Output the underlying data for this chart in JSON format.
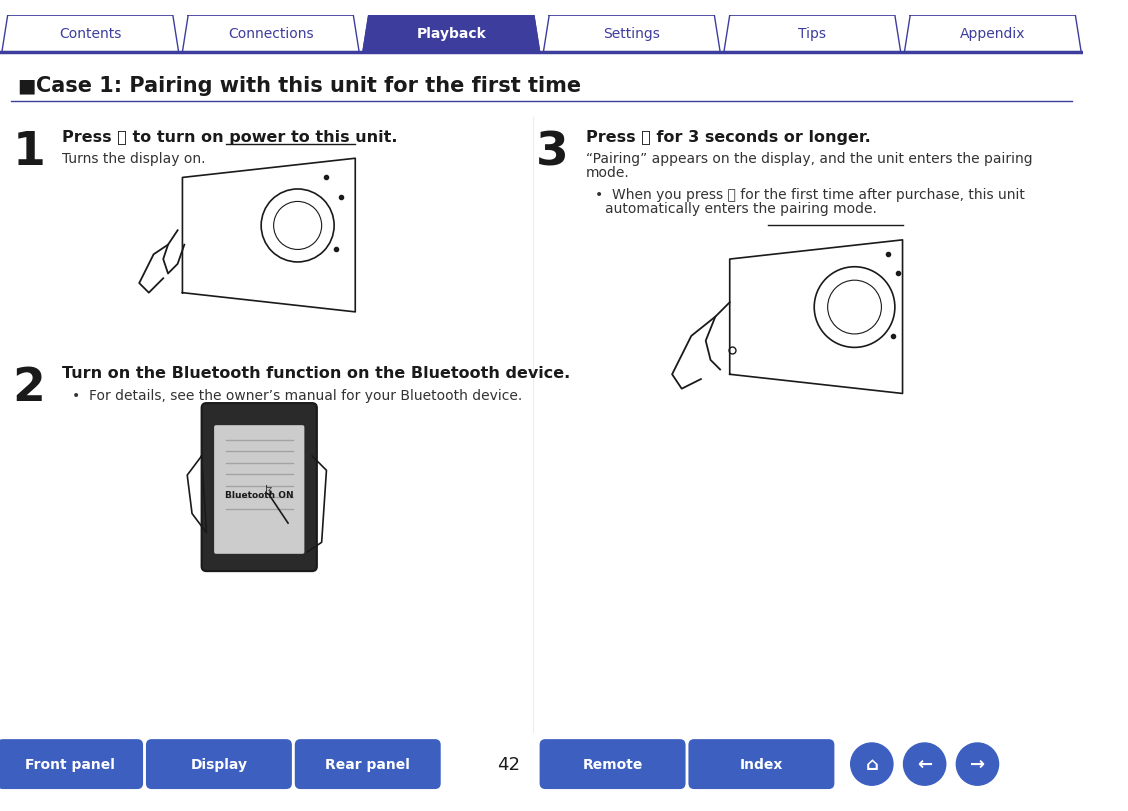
{
  "bg_color": "#ffffff",
  "tab_color_active": "#3d3d9e",
  "tab_color_inactive": "#ffffff",
  "tab_border_color": "#3d3d9e",
  "tab_text_inactive": "#3d3d9e",
  "tab_text_active": "#ffffff",
  "tabs": [
    "Contents",
    "Connections",
    "Playback",
    "Settings",
    "Tips",
    "Appendix"
  ],
  "active_tab": 2,
  "title": "Case 1: Pairing with this unit for the first time",
  "title_color": "#1a1a1a",
  "step1_num": "1",
  "step1_head": "Press ⏻ to turn on power to this unit.",
  "step1_sub": "Turns the display on.",
  "step2_num": "2",
  "step2_head": "Turn on the Bluetooth function on the Bluetooth device.",
  "step2_bullet": "For details, see the owner’s manual for your Bluetooth device.",
  "step3_num": "3",
  "step3_head": "Press ⓥ for 3 seconds or longer.",
  "step3_sub1": "“Pairing” appears on the display, and the unit enters the pairing",
  "step3_sub2": "mode.",
  "step3_bullet": "When you press ⓥ for the first time after purchase, this unit\nautomatically enters the pairing mode.",
  "bottom_buttons": [
    "Front panel",
    "Display",
    "Rear panel",
    "Remote",
    "Index"
  ],
  "page_num": "42",
  "btn_color": "#3d5fc0",
  "btn_text_color": "#ffffff",
  "divider_color": "#3d3d9e",
  "step_num_color": "#1a1a1a",
  "step_head_color": "#1a1a1a",
  "step_sub_color": "#333333",
  "nav_line_color": "#3d3d9e",
  "image_line_color": "#1a1a1a"
}
